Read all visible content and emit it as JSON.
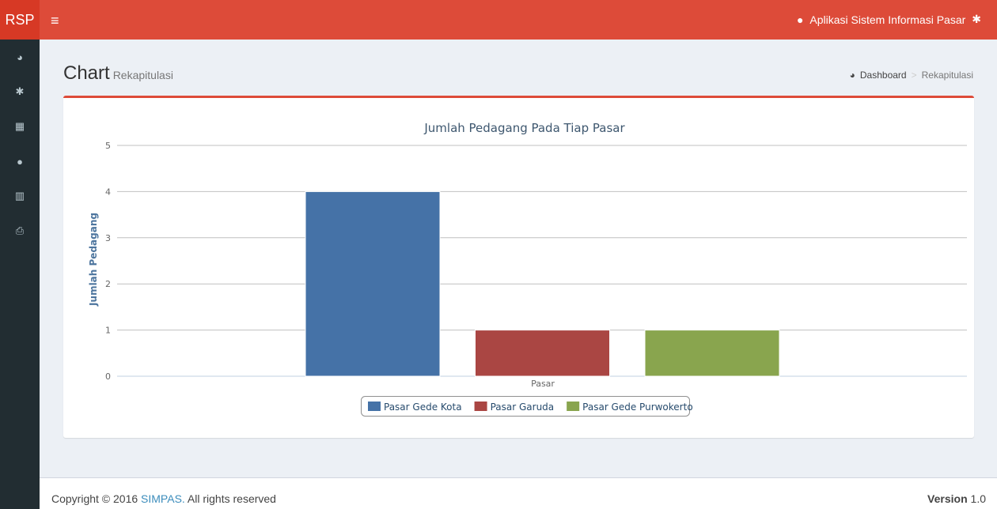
{
  "header": {
    "logo": "RSP",
    "menu_icon": "≡",
    "app_name": "Aplikasi Sistem Informasi Pasar"
  },
  "sidebar": {
    "items": [
      {
        "icon": "dashboard-icon",
        "glyph": "◕"
      },
      {
        "icon": "gear-icon",
        "glyph": "✱"
      },
      {
        "icon": "building-icon",
        "glyph": "▦"
      },
      {
        "icon": "user-icon",
        "glyph": "●"
      },
      {
        "icon": "bar-chart-icon",
        "glyph": "▥"
      },
      {
        "icon": "print-icon",
        "glyph": "⎙"
      }
    ]
  },
  "page": {
    "title": "Chart",
    "subtitle": "Rekapitulasi"
  },
  "breadcrumb": {
    "home": "Dashboard",
    "sep": ">",
    "current": "Rekapitulasi"
  },
  "chart_data": {
    "type": "bar",
    "title": "Jumlah Pedagang Pada Tiap Pasar",
    "xlabel": "Pasar",
    "ylabel": "Jumlah Pedagang",
    "categories": [
      "Pasar"
    ],
    "ylim": [
      0,
      5
    ],
    "yticks": [
      "0",
      "1",
      "2",
      "3",
      "4",
      "5"
    ],
    "legend_position": "bottom",
    "series": [
      {
        "name": "Pasar Gede Kota",
        "values": [
          4
        ],
        "color": "#4572a7"
      },
      {
        "name": "Pasar Garuda",
        "values": [
          1
        ],
        "color": "#aa4643"
      },
      {
        "name": "Pasar Gede Purwokerto",
        "values": [
          1
        ],
        "color": "#89a54e"
      }
    ]
  },
  "footer": {
    "copyright": "Copyright © 2016 ",
    "brand": "SIMPAS.",
    "rights": " All rights reserved",
    "version_label": "Version",
    "version": "1.0"
  }
}
